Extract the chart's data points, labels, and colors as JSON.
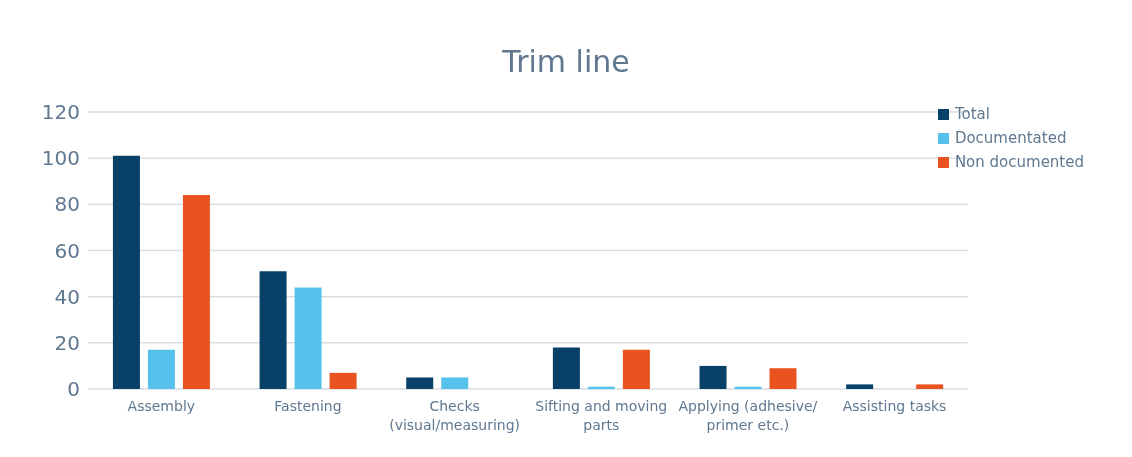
{
  "chart_data": {
    "type": "bar",
    "title": "Trim line",
    "categories": [
      "Assembly",
      "Fastening",
      "Checks (visual/measuring)",
      "Sifting and moving parts",
      "Applying (adhesive/ primer etc.)",
      "Assisting tasks"
    ],
    "series": [
      {
        "name": "Total",
        "color": "#084168",
        "values": [
          101,
          51,
          5,
          18,
          10,
          2
        ]
      },
      {
        "name": "Documentated",
        "color": "#56c1ea",
        "values": [
          17,
          44,
          5,
          1,
          1,
          0
        ]
      },
      {
        "name": "Non documented",
        "color": "#e8531f",
        "values": [
          84,
          7,
          0,
          17,
          9,
          2
        ]
      }
    ],
    "ylim": [
      0,
      120
    ],
    "yticks": [
      0,
      20,
      40,
      60,
      80,
      100,
      120
    ],
    "grid": "y",
    "legend": "top right"
  }
}
